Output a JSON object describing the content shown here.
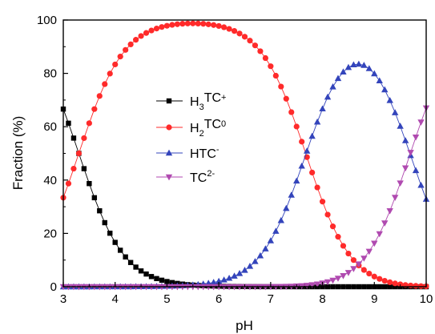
{
  "chart_data": {
    "type": "line",
    "xlabel": "pH",
    "ylabel": "Fraction (%)",
    "xlim": [
      3,
      10
    ],
    "ylim": [
      0,
      100
    ],
    "xticks": [
      "3",
      "4",
      "5",
      "6",
      "7",
      "8",
      "9",
      "10"
    ],
    "yticks": [
      "0",
      "20",
      "40",
      "60",
      "80",
      "100"
    ],
    "grid": false,
    "legend_position": "center-left",
    "pKa": [
      3.3,
      7.68,
      9.69
    ],
    "series": [
      {
        "name": "H3TC+",
        "label_main": "H",
        "sub": "3",
        "label_rest": "TC",
        "sup": "+",
        "marker": "square",
        "color": "#000000"
      },
      {
        "name": "H2TC0",
        "label_main": "H",
        "sub": "2",
        "label_rest": "TC",
        "sup": "0",
        "marker": "circle",
        "color": "#ff2a2a"
      },
      {
        "name": "HTC-",
        "label_main": "HTC",
        "sub": "",
        "label_rest": "",
        "sup": "-",
        "marker": "triangle-up",
        "color": "#3344bb"
      },
      {
        "name": "TC2-",
        "label_main": "TC",
        "sub": "",
        "label_rest": "",
        "sup": "2-",
        "marker": "triangle-down",
        "color": "#b04ab0"
      }
    ]
  }
}
